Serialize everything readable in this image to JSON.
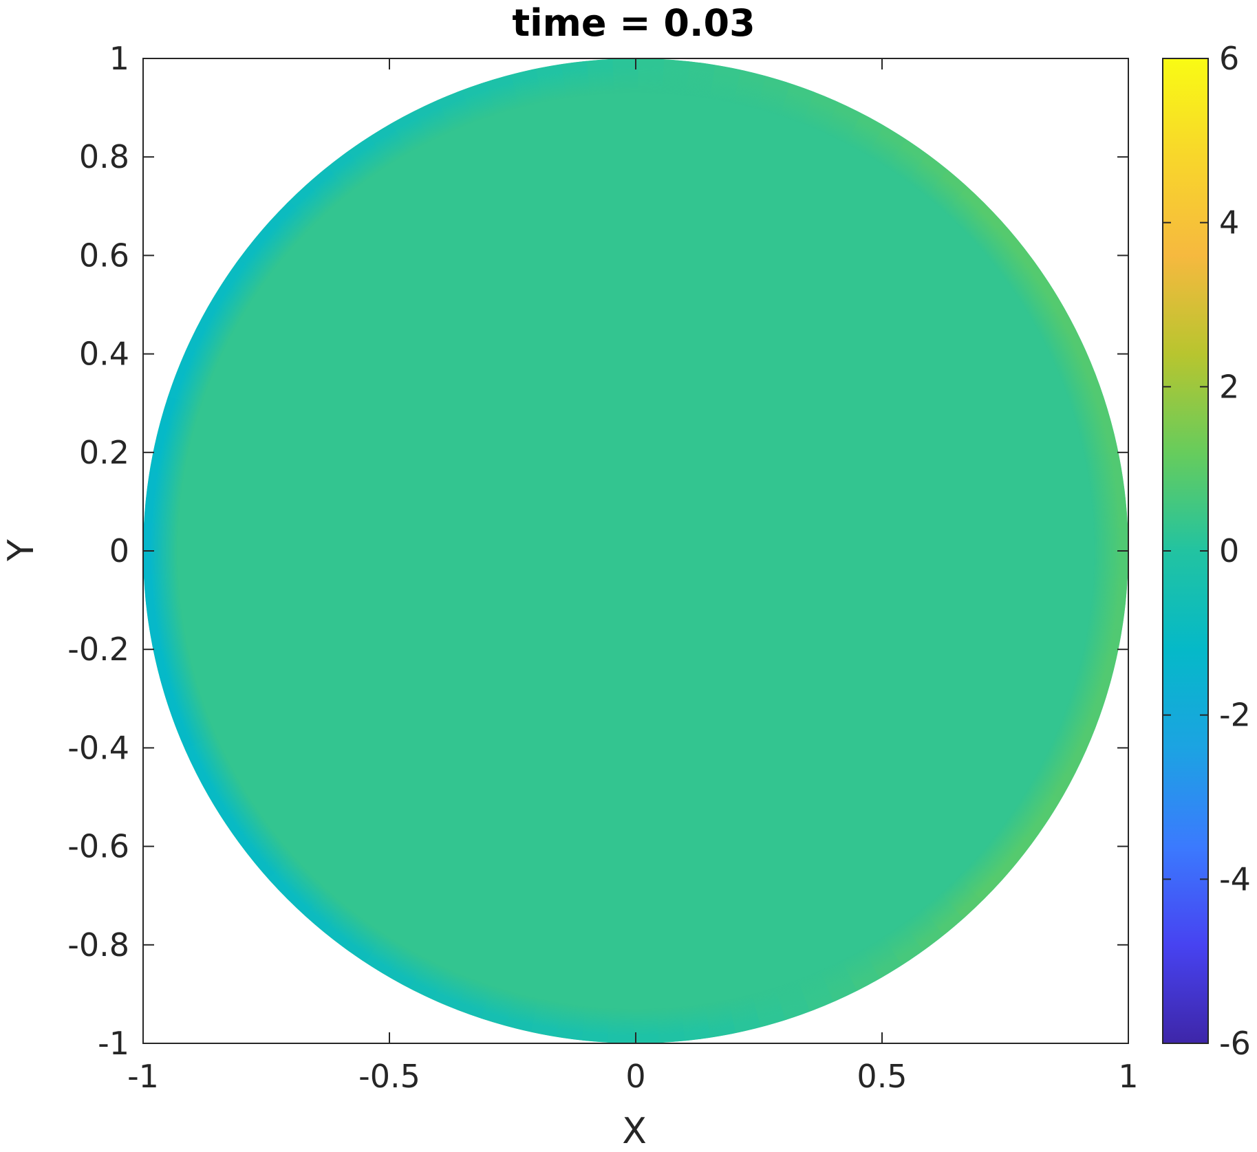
{
  "chart_data": {
    "type": "heatmap",
    "title": "time = 0.03",
    "xlabel": "X",
    "ylabel": "Y",
    "xlim": [
      -1,
      1
    ],
    "ylim": [
      -1,
      1
    ],
    "x_ticks": [
      -1,
      -0.5,
      0,
      0.5,
      1
    ],
    "x_tick_labels": [
      "-1",
      "-0.5",
      "0",
      "0.5",
      "1"
    ],
    "y_ticks": [
      -1,
      -0.8,
      -0.6,
      -0.4,
      -0.2,
      0,
      0.2,
      0.4,
      0.6,
      0.8,
      1
    ],
    "y_tick_labels": [
      "-1",
      "-0.8",
      "-0.6",
      "-0.4",
      "-0.2",
      "0",
      "0.2",
      "0.4",
      "0.6",
      "0.8",
      "1"
    ],
    "domain_shape": "unit disk",
    "field_summary": {
      "interior_value": 0.3,
      "edge_values": [
        {
          "angle_deg": 0,
          "value": 0.8
        },
        {
          "angle_deg": 45,
          "value": 0.9
        },
        {
          "angle_deg": 90,
          "value": 0.2
        },
        {
          "angle_deg": 135,
          "value": -0.9
        },
        {
          "angle_deg": 180,
          "value": -1.3
        },
        {
          "angle_deg": 225,
          "value": -1.0
        },
        {
          "angle_deg": 270,
          "value": -0.2
        },
        {
          "angle_deg": 315,
          "value": 0.9
        }
      ]
    },
    "colorbar": {
      "colormap": "parula",
      "range": [
        -6,
        6
      ],
      "ticks": [
        -6,
        -4,
        -2,
        0,
        2,
        4,
        6
      ],
      "tick_labels": [
        "-6",
        "-4",
        "-2",
        "0",
        "2",
        "4",
        "6"
      ],
      "colors": [
        "#3e26a8",
        "#4743f1",
        "#3b7afe",
        "#1ca3e2",
        "#05b9c8",
        "#22c3a1",
        "#67cc5c",
        "#b8c52f",
        "#f6b93f",
        "#f8d62b",
        "#f9fb14"
      ]
    },
    "grid": false,
    "legend": "none"
  }
}
